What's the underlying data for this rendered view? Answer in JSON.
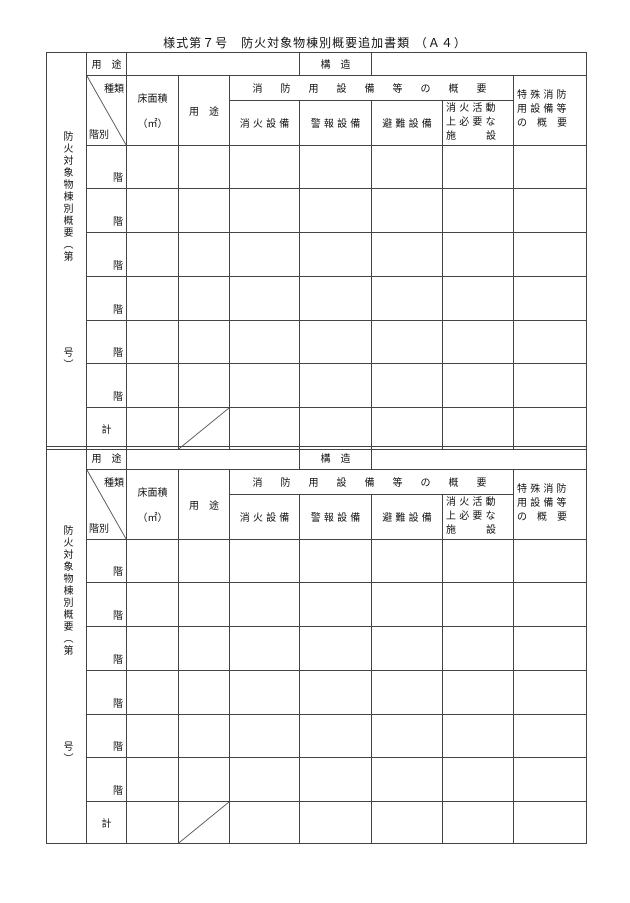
{
  "form_title": "様式第７号　防火対象物棟別概要追加書類 （Ａ４）",
  "side_label": "防火対象物棟別概要（第　　　　　　　号）",
  "row_use_label": "用　途",
  "structure_label": "構　造",
  "kind_label": "種類",
  "floor_label": "階別",
  "floor_area_label": "床面積",
  "floor_area_unit": "（㎡）",
  "use_label": "用　途",
  "equipment_header": "消　防　用　設　備　等　の　概　要",
  "fire_ext": "消 火 設 備",
  "alarm": "警 報 設 備",
  "evac": "避 難 設 備",
  "fire_activity_lines": [
    "消 火 活 動",
    "上 必 要 な",
    "施　　　設"
  ],
  "special_lines": [
    "特 殊 消 防",
    "用 設 備 等",
    "の　概　要"
  ],
  "floor_suffix": "階",
  "total_label": "計",
  "sections": [
    {
      "id": "section-1"
    },
    {
      "id": "section-2"
    }
  ]
}
